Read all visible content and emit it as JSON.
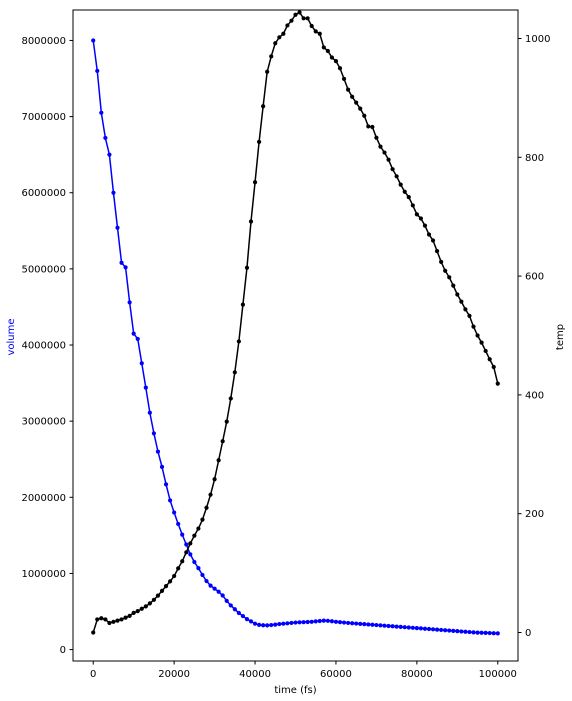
{
  "chart_data": {
    "type": "line",
    "xlabel": "time (fs)",
    "ylabel_left": "volume",
    "ylabel_right": "temp",
    "x_ticks": [
      0,
      20000,
      40000,
      60000,
      80000,
      100000
    ],
    "y_left_ticks": [
      0,
      1000000,
      2000000,
      3000000,
      4000000,
      5000000,
      6000000,
      7000000,
      8000000
    ],
    "y_right_ticks": [
      0,
      200,
      400,
      600,
      800,
      1000
    ],
    "xlim": [
      -5000,
      105000
    ],
    "ylim_left": [
      -150000,
      8400000
    ],
    "ylim_right": [
      -48,
      1048
    ],
    "grid": false,
    "colors": {
      "volume": "#0000ff",
      "temp": "#000000",
      "ylabel_left": "#0000ff",
      "ylabel_right": "#000000"
    },
    "x": [
      0,
      1000,
      2000,
      3000,
      4000,
      5000,
      6000,
      7000,
      8000,
      9000,
      10000,
      11000,
      12000,
      13000,
      14000,
      15000,
      16000,
      17000,
      18000,
      19000,
      20000,
      21000,
      22000,
      23000,
      24000,
      25000,
      26000,
      27000,
      28000,
      29000,
      30000,
      31000,
      32000,
      33000,
      34000,
      35000,
      36000,
      37000,
      38000,
      39000,
      40000,
      41000,
      42000,
      43000,
      44000,
      45000,
      46000,
      47000,
      48000,
      49000,
      50000,
      51000,
      52000,
      53000,
      54000,
      55000,
      56000,
      57000,
      58000,
      59000,
      60000,
      61000,
      62000,
      63000,
      64000,
      65000,
      66000,
      67000,
      68000,
      69000,
      70000,
      71000,
      72000,
      73000,
      74000,
      75000,
      76000,
      77000,
      78000,
      79000,
      80000,
      81000,
      82000,
      83000,
      84000,
      85000,
      86000,
      87000,
      88000,
      89000,
      90000,
      91000,
      92000,
      93000,
      94000,
      95000,
      96000,
      97000,
      98000,
      99000,
      100000
    ],
    "series": [
      {
        "name": "volume",
        "axis": "left",
        "values": [
          8000000,
          7600000,
          7050000,
          6720000,
          6500000,
          6000000,
          5540000,
          5080000,
          5020000,
          4560000,
          4150000,
          4080000,
          3760000,
          3440000,
          3110000,
          2840000,
          2600000,
          2400000,
          2170000,
          1960000,
          1800000,
          1650000,
          1510000,
          1380000,
          1250000,
          1150000,
          1070000,
          980000,
          900000,
          840000,
          800000,
          760000,
          710000,
          640000,
          580000,
          530000,
          480000,
          440000,
          400000,
          370000,
          340000,
          325000,
          320000,
          318000,
          322000,
          328000,
          335000,
          340000,
          345000,
          350000,
          355000,
          358000,
          360000,
          362000,
          365000,
          370000,
          375000,
          380000,
          378000,
          372000,
          365000,
          360000,
          355000,
          350000,
          346000,
          342000,
          338000,
          334000,
          330000,
          326000,
          322000,
          318000,
          314000,
          310000,
          306000,
          302000,
          298000,
          294000,
          290000,
          286000,
          282000,
          278000,
          274000,
          270000,
          266000,
          262000,
          258000,
          254000,
          250000,
          246000,
          242000,
          238000,
          234000,
          230000,
          226000,
          223000,
          221000,
          219000,
          217000,
          215000,
          213000
        ]
      },
      {
        "name": "temp",
        "axis": "right",
        "values": [
          0,
          22,
          24,
          22,
          16,
          18,
          20,
          22,
          25,
          28,
          33,
          36,
          40,
          44,
          49,
          55,
          62,
          70,
          78,
          86,
          95,
          108,
          120,
          135,
          150,
          163,
          175,
          190,
          210,
          232,
          258,
          290,
          322,
          355,
          394,
          438,
          490,
          552,
          614,
          692,
          758,
          826,
          886,
          944,
          970,
          992,
          1002,
          1008,
          1022,
          1030,
          1040,
          1044,
          1034,
          1034,
          1021,
          1012,
          1008,
          985,
          979,
          968,
          962,
          950,
          932,
          914,
          902,
          892,
          882,
          870,
          852,
          851,
          833,
          818,
          808,
          796,
          780,
          768,
          754,
          742,
          733,
          719,
          704,
          697,
          685,
          670,
          660,
          642,
          624,
          609,
          598,
          584,
          569,
          557,
          544,
          533,
          515,
          500,
          488,
          474,
          460,
          447,
          419
        ]
      }
    ]
  }
}
